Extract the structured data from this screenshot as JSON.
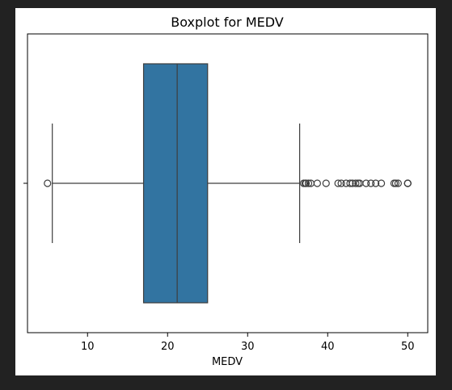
{
  "chart_data": {
    "type": "boxplot",
    "title": "Boxplot for MEDV",
    "xlabel": "MEDV",
    "ylabel": "",
    "xlim": [
      2.5,
      52.5
    ],
    "xticks": [
      10,
      20,
      30,
      40,
      50
    ],
    "box": {
      "min_whisker": 5.6,
      "q1": 17.0,
      "median": 21.2,
      "q3": 25.0,
      "max_whisker": 36.5
    },
    "outliers": [
      5.0,
      37.0,
      37.2,
      37.3,
      37.6,
      37.9,
      38.7,
      39.8,
      41.3,
      41.7,
      42.3,
      42.8,
      43.1,
      43.5,
      43.8,
      44.0,
      44.8,
      45.4,
      46.0,
      46.7,
      48.3,
      48.5,
      48.8,
      50.0,
      50.0,
      50.0
    ],
    "box_color": "#3274a1",
    "line_color": "#3d3d3d",
    "grid": false,
    "legend": "none"
  }
}
